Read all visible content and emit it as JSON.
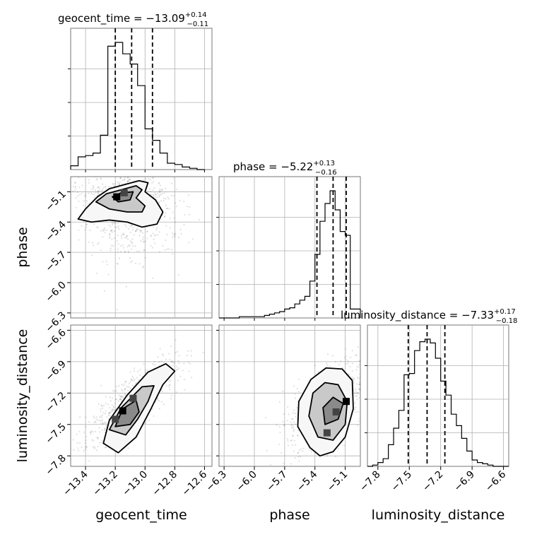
{
  "chart_data": {
    "type": "corner",
    "parameters": [
      {
        "name": "geocent_time",
        "median": "−13.09",
        "plus": "+0.14",
        "minus": "−0.11",
        "range": [
          -13.5,
          -12.55
        ],
        "ticks": [
          -13.4,
          -13.2,
          -13.0,
          -12.8,
          -12.6
        ],
        "tick_labels": [
          "−13.4",
          "−13.2",
          "−13.0",
          "−12.8",
          "−12.6"
        ],
        "quantiles": [
          -13.2,
          -13.09,
          -12.95
        ],
        "hist_edges": [
          -13.5,
          -13.45,
          -13.4,
          -13.35,
          -13.3,
          -13.25,
          -13.2,
          -13.15,
          -13.1,
          -13.05,
          -13.0,
          -12.95,
          -12.9,
          -12.85,
          -12.8,
          -12.75,
          -12.7,
          -12.65,
          -12.6
        ],
        "hist_counts": [
          0.03,
          0.1,
          0.11,
          0.13,
          0.27,
          0.97,
          1.0,
          0.91,
          0.83,
          0.66,
          0.32,
          0.23,
          0.13,
          0.05,
          0.04,
          0.02,
          0.01,
          0.0
        ]
      },
      {
        "name": "phase",
        "median": "−5.22",
        "plus": "+0.13",
        "minus": "−0.16",
        "range": [
          -6.35,
          -4.95
        ],
        "ticks": [
          -6.3,
          -6.0,
          -5.7,
          -5.4,
          -5.1
        ],
        "tick_labels": [
          "−6.3",
          "−6.0",
          "−5.7",
          "−5.4",
          "−5.1"
        ],
        "quantiles": [
          -5.38,
          -5.22,
          -5.09
        ],
        "hist_edges": [
          -6.35,
          -6.3,
          -6.25,
          -6.2,
          -6.15,
          -6.1,
          -6.05,
          -6.0,
          -5.95,
          -5.9,
          -5.85,
          -5.8,
          -5.75,
          -5.7,
          -5.65,
          -5.6,
          -5.55,
          -5.5,
          -5.45,
          -5.4,
          -5.35,
          -5.3,
          -5.25,
          -5.2,
          -5.15,
          -5.1,
          -5.05,
          -5.0,
          -4.95
        ],
        "hist_counts": [
          0.0,
          0.0,
          0.0,
          0.0,
          0.01,
          0.01,
          0.01,
          0.01,
          0.01,
          0.02,
          0.03,
          0.04,
          0.05,
          0.07,
          0.08,
          0.11,
          0.14,
          0.17,
          0.29,
          0.5,
          0.76,
          0.9,
          1.0,
          0.85,
          0.68,
          0.65,
          0.07,
          0.07
        ]
      },
      {
        "name": "luminosity_distance",
        "median": "−7.33",
        "plus": "+0.17",
        "minus": "−0.18",
        "range": [
          -7.9,
          -6.55
        ],
        "ticks": [
          -7.8,
          -7.5,
          -7.2,
          -6.9,
          -6.6
        ],
        "tick_labels": [
          "−7.8",
          "−7.5",
          "−7.2",
          "−6.9",
          "−6.6"
        ],
        "quantiles": [
          -7.51,
          -7.33,
          -7.16
        ],
        "hist_edges": [
          -7.9,
          -7.85,
          -7.8,
          -7.75,
          -7.7,
          -7.65,
          -7.6,
          -7.55,
          -7.5,
          -7.45,
          -7.4,
          -7.35,
          -7.3,
          -7.25,
          -7.2,
          -7.15,
          -7.1,
          -7.05,
          -7.0,
          -6.95,
          -6.9,
          -6.85,
          -6.8,
          -6.75,
          -6.7,
          -6.65,
          -6.6,
          -6.55
        ],
        "hist_counts": [
          0.0,
          0.01,
          0.03,
          0.06,
          0.17,
          0.3,
          0.44,
          0.72,
          0.73,
          0.91,
          0.98,
          1.0,
          0.97,
          0.85,
          0.67,
          0.56,
          0.41,
          0.32,
          0.22,
          0.12,
          0.05,
          0.03,
          0.02,
          0.01,
          0.0,
          0.0,
          0.0
        ]
      }
    ],
    "pairs": [
      {
        "x": "geocent_time",
        "y": "phase",
        "center": [
          -13.12,
          -5.2
        ],
        "contours": [
          [
            [
              -13.45,
              -5.37
            ],
            [
              -13.4,
              -5.27
            ],
            [
              -13.32,
              -5.15
            ],
            [
              -13.24,
              -5.07
            ],
            [
              -13.14,
              -5.03
            ],
            [
              -13.04,
              -4.99
            ],
            [
              -12.98,
              -5.01
            ],
            [
              -13.0,
              -5.1
            ],
            [
              -12.93,
              -5.18
            ],
            [
              -12.88,
              -5.3
            ],
            [
              -12.92,
              -5.42
            ],
            [
              -13.02,
              -5.45
            ],
            [
              -13.12,
              -5.4
            ],
            [
              -13.24,
              -5.38
            ],
            [
              -13.36,
              -5.4
            ]
          ],
          [
            [
              -13.33,
              -5.2
            ],
            [
              -13.26,
              -5.12
            ],
            [
              -13.16,
              -5.08
            ],
            [
              -13.06,
              -5.04
            ],
            [
              -13.02,
              -5.08
            ],
            [
              -13.06,
              -5.16
            ],
            [
              -13.0,
              -5.24
            ],
            [
              -13.02,
              -5.3
            ],
            [
              -13.12,
              -5.3
            ],
            [
              -13.24,
              -5.27
            ]
          ],
          [
            [
              -13.22,
              -5.15
            ],
            [
              -13.16,
              -5.11
            ],
            [
              -13.08,
              -5.1
            ],
            [
              -13.1,
              -5.18
            ],
            [
              -13.18,
              -5.2
            ]
          ]
        ],
        "peaks": [
          [
            -13.19,
            -5.15
          ],
          [
            -13.14,
            -5.11
          ]
        ]
      },
      {
        "x": "geocent_time",
        "y": "luminosity_distance",
        "center": [
          -13.1,
          -7.3
        ],
        "contours": [
          [
            [
              -13.28,
              -7.68
            ],
            [
              -13.24,
              -7.46
            ],
            [
              -13.12,
              -7.22
            ],
            [
              -12.98,
              -7.0
            ],
            [
              -12.86,
              -6.92
            ],
            [
              -12.8,
              -6.99
            ],
            [
              -12.88,
              -7.12
            ],
            [
              -12.96,
              -7.35
            ],
            [
              -13.06,
              -7.62
            ],
            [
              -13.18,
              -7.77
            ]
          ],
          [
            [
              -13.24,
              -7.55
            ],
            [
              -13.16,
              -7.34
            ],
            [
              -13.02,
              -7.14
            ],
            [
              -12.94,
              -7.13
            ],
            [
              -12.98,
              -7.28
            ],
            [
              -13.05,
              -7.45
            ],
            [
              -13.13,
              -7.6
            ]
          ],
          [
            [
              -13.2,
              -7.52
            ],
            [
              -13.15,
              -7.35
            ],
            [
              -13.06,
              -7.27
            ],
            [
              -13.04,
              -7.38
            ],
            [
              -13.1,
              -7.5
            ]
          ]
        ],
        "peaks": [
          [
            -13.15,
            -7.37
          ],
          [
            -13.2,
            -7.45
          ],
          [
            -13.08,
            -7.25
          ]
        ]
      },
      {
        "x": "phase",
        "y": "luminosity_distance",
        "center": [
          -5.25,
          -7.3
        ],
        "contours": [
          [
            [
              -5.45,
              -7.72
            ],
            [
              -5.57,
              -7.52
            ],
            [
              -5.56,
              -7.28
            ],
            [
              -5.44,
              -7.07
            ],
            [
              -5.29,
              -6.96
            ],
            [
              -5.13,
              -6.97
            ],
            [
              -5.03,
              -7.08
            ],
            [
              -5.02,
              -7.35
            ],
            [
              -5.1,
              -7.62
            ],
            [
              -5.22,
              -7.76
            ],
            [
              -5.35,
              -7.8
            ]
          ],
          [
            [
              -5.37,
              -7.62
            ],
            [
              -5.46,
              -7.42
            ],
            [
              -5.42,
              -7.2
            ],
            [
              -5.3,
              -7.1
            ],
            [
              -5.17,
              -7.12
            ],
            [
              -5.08,
              -7.28
            ],
            [
              -5.1,
              -7.5
            ],
            [
              -5.22,
              -7.65
            ]
          ],
          [
            [
              -5.3,
              -7.5
            ],
            [
              -5.32,
              -7.34
            ],
            [
              -5.22,
              -7.24
            ],
            [
              -5.12,
              -7.3
            ],
            [
              -5.17,
              -7.45
            ]
          ]
        ],
        "peaks": [
          [
            -5.09,
            -7.28
          ],
          [
            -5.19,
            -7.38
          ],
          [
            -5.28,
            -7.58
          ]
        ]
      }
    ]
  }
}
